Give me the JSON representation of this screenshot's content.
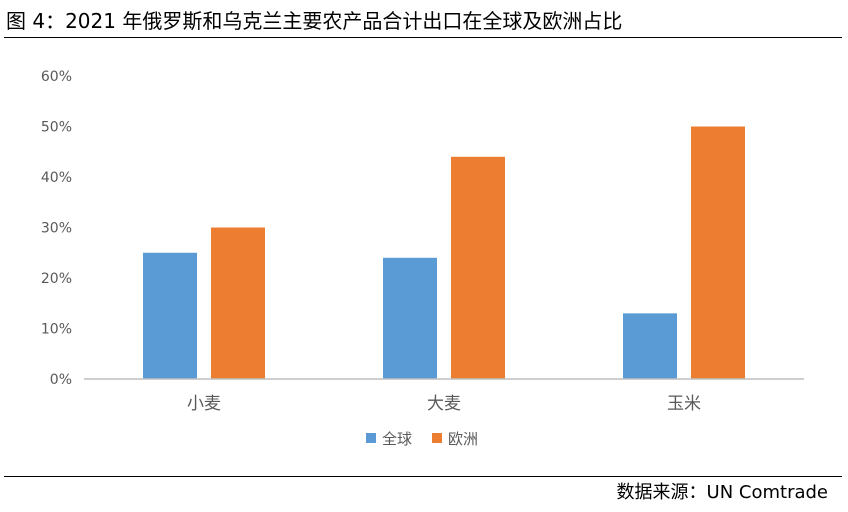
{
  "title": "图 4：2021 年俄罗斯和乌克兰主要农产品合计出口在全球及欧洲占比",
  "source": "数据来源：UN Comtrade",
  "chart_data": {
    "type": "bar",
    "categories": [
      "小麦",
      "大麦",
      "玉米"
    ],
    "series": [
      {
        "name": "全球",
        "values": [
          25,
          24,
          13
        ],
        "color": "#5B9BD5"
      },
      {
        "name": "欧洲",
        "values": [
          30,
          44,
          50
        ],
        "color": "#ED7D31"
      }
    ],
    "y_ticks": [
      "0%",
      "10%",
      "20%",
      "30%",
      "40%",
      "50%",
      "60%"
    ],
    "ylim": [
      0,
      60
    ],
    "grid": false,
    "legend_position": "bottom"
  }
}
